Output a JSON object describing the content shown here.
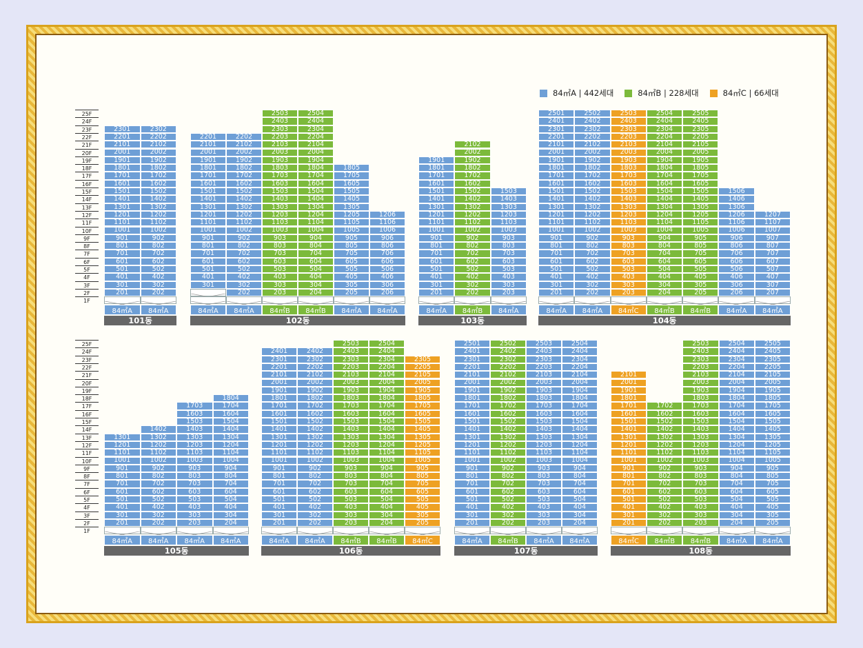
{
  "legend": [
    {
      "label": "84㎡A | 442세대",
      "color": "#6e9fd6"
    },
    {
      "label": "84㎡B | 228세대",
      "color": "#7cba3b"
    },
    {
      "label": "84㎡C | 66세대",
      "color": "#eea123"
    }
  ],
  "floor_labels": [
    "25F",
    "24F",
    "23F",
    "22F",
    "21F",
    "20F",
    "19F",
    "18F",
    "17F",
    "16F",
    "15F",
    "14F",
    "13F",
    "12F",
    "11F",
    "10F",
    "9F",
    "8F",
    "7F",
    "6F",
    "5F",
    "4F",
    "3F",
    "2F",
    "1F"
  ],
  "type_labels": {
    "A": "84㎡A",
    "B": "84㎡B",
    "C": "84㎡C"
  },
  "buildings": [
    {
      "name": "101동",
      "columns": [
        {
          "line": 1,
          "type": "A",
          "top": 23,
          "bottom": 2
        },
        {
          "line": 2,
          "type": "A",
          "top": 23,
          "bottom": 2
        }
      ]
    },
    {
      "name": "102동",
      "columns": [
        {
          "line": 1,
          "type": "A",
          "top": 22,
          "bottom": 3
        },
        {
          "line": 2,
          "type": "A",
          "top": 22,
          "bottom": 2
        },
        {
          "line": 3,
          "type": "B",
          "top": 25,
          "bottom": 2
        },
        {
          "line": 4,
          "type": "B",
          "top": 25,
          "bottom": 2
        },
        {
          "line": 5,
          "type": "A",
          "top": 18,
          "bottom": 2
        },
        {
          "line": 6,
          "type": "A",
          "top": 12,
          "bottom": 2
        }
      ]
    },
    {
      "name": "103동",
      "columns": [
        {
          "line": 1,
          "type": "A",
          "top": 19,
          "bottom": 2
        },
        {
          "line": 2,
          "type": "B",
          "top": 21,
          "bottom": 2
        },
        {
          "line": 3,
          "type": "A",
          "top": 15,
          "bottom": 2
        }
      ]
    },
    {
      "name": "104동",
      "columns": [
        {
          "line": 1,
          "type": "A",
          "top": 25,
          "bottom": 2
        },
        {
          "line": 2,
          "type": "A",
          "top": 25,
          "bottom": 2
        },
        {
          "line": 3,
          "type": "C",
          "top": 25,
          "bottom": 2
        },
        {
          "line": 4,
          "type": "B",
          "top": 25,
          "bottom": 2
        },
        {
          "line": 5,
          "type": "B",
          "top": 25,
          "bottom": 2
        },
        {
          "line": 6,
          "type": "A",
          "top": 15,
          "bottom": 2
        },
        {
          "line": 7,
          "type": "A",
          "top": 12,
          "bottom": 2
        }
      ]
    },
    {
      "name": "105동",
      "columns": [
        {
          "line": 1,
          "type": "A",
          "top": 13,
          "bottom": 2
        },
        {
          "line": 2,
          "type": "A",
          "top": 14,
          "bottom": 2
        },
        {
          "line": 3,
          "type": "A",
          "top": 17,
          "bottom": 2
        },
        {
          "line": 4,
          "type": "A",
          "top": 18,
          "bottom": 2
        }
      ]
    },
    {
      "name": "106동",
      "columns": [
        {
          "line": 1,
          "type": "A",
          "top": 24,
          "bottom": 2
        },
        {
          "line": 2,
          "type": "A",
          "top": 24,
          "bottom": 2
        },
        {
          "line": 3,
          "type": "B",
          "top": 25,
          "bottom": 2
        },
        {
          "line": 4,
          "type": "B",
          "top": 25,
          "bottom": 2
        },
        {
          "line": 5,
          "type": "C",
          "top": 23,
          "bottom": 2
        }
      ]
    },
    {
      "name": "107동",
      "columns": [
        {
          "line": 1,
          "type": "A",
          "top": 25,
          "bottom": 2
        },
        {
          "line": 2,
          "type": "B",
          "top": 25,
          "bottom": 2
        },
        {
          "line": 3,
          "type": "A",
          "top": 25,
          "bottom": 2
        },
        {
          "line": 4,
          "type": "A",
          "top": 25,
          "bottom": 2
        }
      ]
    },
    {
      "name": "108동",
      "columns": [
        {
          "line": 1,
          "type": "C",
          "top": 21,
          "bottom": 2
        },
        {
          "line": 2,
          "type": "B",
          "top": 17,
          "bottom": 2
        },
        {
          "line": 3,
          "type": "B",
          "top": 25,
          "bottom": 2
        },
        {
          "line": 4,
          "type": "A",
          "top": 25,
          "bottom": 2
        },
        {
          "line": 5,
          "type": "A",
          "top": 25,
          "bottom": 2
        }
      ]
    }
  ]
}
